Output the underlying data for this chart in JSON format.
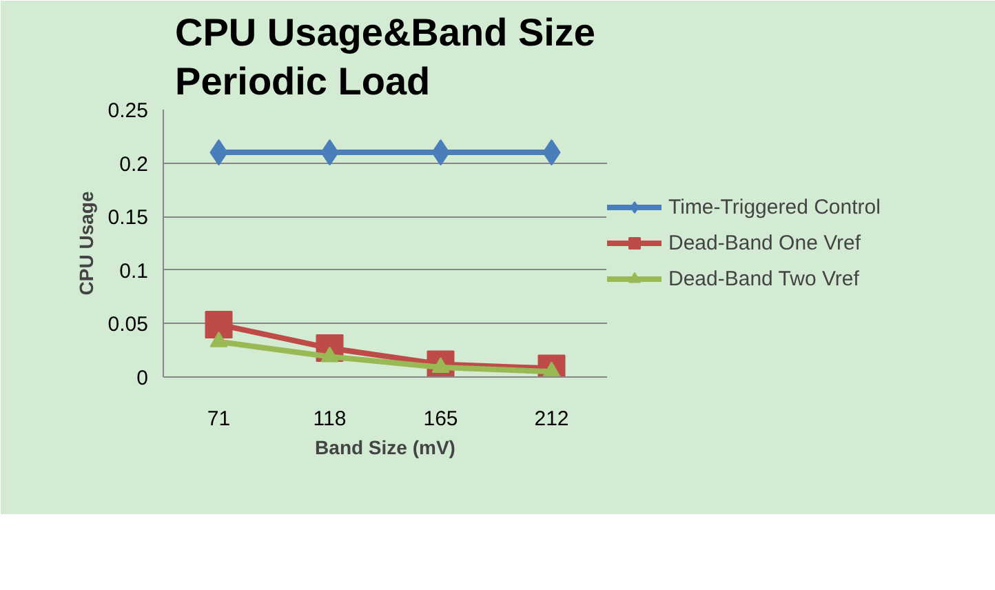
{
  "chart_data": {
    "type": "line",
    "title": "CPU Usage&Band Size\nPeriodic Load",
    "xlabel": "Band Size (mV)",
    "ylabel": "CPU Usage",
    "categories": [
      "71",
      "118",
      "165",
      "212"
    ],
    "series": [
      {
        "name": "Time-Triggered Control",
        "color": "#4a7ebb",
        "marker": "diamond",
        "values": [
          0.21,
          0.21,
          0.21,
          0.21
        ]
      },
      {
        "name": "Dead-Band One Vref",
        "color": "#be4b48",
        "marker": "square",
        "values": [
          0.049,
          0.027,
          0.012,
          0.008
        ]
      },
      {
        "name": "Dead-Band Two Vref",
        "color": "#98b954",
        "marker": "triangle",
        "values": [
          0.033,
          0.019,
          0.009,
          0.005
        ]
      }
    ],
    "ylim": [
      0,
      0.25
    ],
    "yticks": [
      0,
      0.05,
      0.1,
      0.15,
      0.2,
      0.25
    ],
    "grid": "y",
    "legend": "right"
  }
}
